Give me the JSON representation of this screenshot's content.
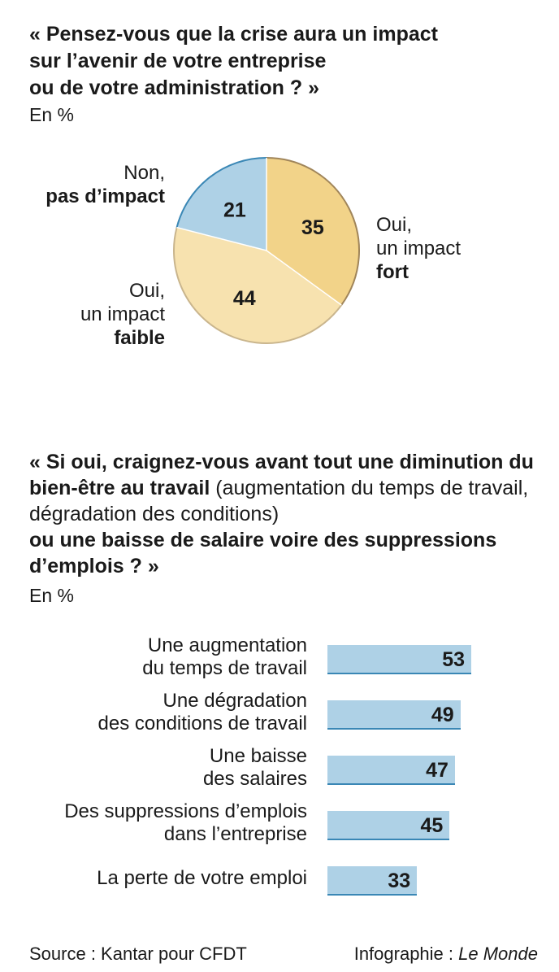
{
  "q1": {
    "title_lines": [
      "« Pensez-vous que la crise aura un impact",
      "sur l’avenir de votre entreprise",
      "ou de votre administration ? »"
    ],
    "unit": "En %"
  },
  "pie_labels": {
    "non_line1": "Non,",
    "non_line2": "pas d’impact",
    "faible_line1": "Oui,",
    "faible_line2": "un impact",
    "faible_line3": "faible",
    "fort_line1": "Oui,",
    "fort_line2": "un impact",
    "fort_line3": "fort"
  },
  "q2": {
    "part1": "« Si oui, craignez-vous avant tout une diminution du bien-être au travail",
    "part2": " (augmentation du temps de travail, dégradation des conditions)",
    "part3": "ou une baisse de salaire voire des suppressions d’emplois ? »",
    "unit": "En %"
  },
  "footer": {
    "source": "Source : Kantar pour CFDT",
    "credit_prefix": "Infographie : ",
    "credit_name": "Le Monde"
  },
  "chart_data": [
    {
      "type": "pie",
      "slices": [
        {
          "label": "Oui, un impact fort",
          "value": 35,
          "color": "#f2d389"
        },
        {
          "label": "Oui, un impact faible",
          "value": 44,
          "color": "#f7e2af"
        },
        {
          "label": "Non, pas d’impact",
          "value": 21,
          "color": "#aed1e6"
        }
      ],
      "colors": {
        "fort_edge": "#a0855a",
        "faible_edge": "#c9b58d",
        "non_edge": "#3a87b5"
      }
    },
    {
      "type": "bar",
      "orientation": "horizontal",
      "categories": [
        [
          "Une augmentation",
          "du temps de travail"
        ],
        [
          "Une dégradation",
          "des conditions de travail"
        ],
        [
          "Une baisse",
          "des salaires"
        ],
        [
          "Des suppressions d’emplois",
          "dans l’entreprise"
        ],
        [
          "La perte de votre emploi"
        ]
      ],
      "values": [
        53,
        49,
        47,
        45,
        33
      ],
      "bar_color": "#aed1e6",
      "bar_edge_color": "#3a87b5"
    }
  ]
}
